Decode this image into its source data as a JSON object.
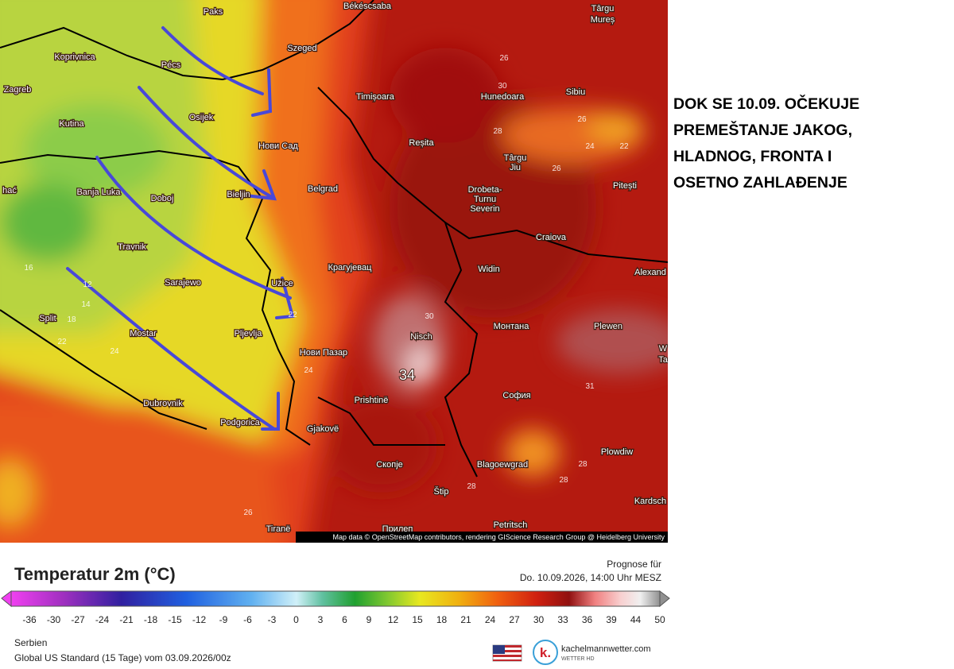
{
  "map": {
    "cities": [
      "Paks",
      "Békéscsaba",
      "Târgu",
      "Mureș",
      "Koprivnica",
      "Pécs",
      "Szeged",
      "Zagreb",
      "Osijek",
      "Timișoara",
      "Hunedoara",
      "Sibiu",
      "Kutina",
      "Нови Сад",
      "Reșita",
      "Târgu",
      "Jiu",
      "Pitești",
      "Banja Luka",
      "Doboj",
      "Bieljin",
      "Belgrad",
      "Drobeta-",
      "Turnu",
      "Severin",
      "Craiova",
      "hać",
      "Travnik",
      "Sarajewo",
      "Užice",
      "Крагујевац",
      "Widin",
      "Alexand",
      "Split",
      "Mostar",
      "Pljevlja",
      "Nisch",
      "Монтана",
      "Plewen",
      "Нови Пазар",
      "Prishtinë",
      "София",
      "Dubrovnik",
      "Podgorica",
      "Gjakovë",
      "Скопје",
      "Blagoewgrad",
      "Plowdiw",
      "Štip",
      "Kardsch",
      "Tiranë",
      "Прилеп",
      "Petritsch",
      "W",
      "Ta"
    ],
    "contour_labels": [
      "26",
      "30",
      "28",
      "26",
      "24",
      "22",
      "26",
      "16",
      "12",
      "14",
      "18",
      "22",
      "24",
      "22",
      "24",
      "30",
      "26",
      "28",
      "28",
      "28",
      "31"
    ],
    "highlight_label": "34",
    "attribution": "Map data © OpenStreetMap contributors, rendering GIScience Research Group @ Heidelberg University"
  },
  "annotation": {
    "lines": [
      "DOK SE 10.09. OČEKUJE",
      "PREMEŠTANJE JAKOG,",
      "HLADNOG, FRONTA I",
      "OSETNO ZAHLAĐENJE"
    ]
  },
  "legend": {
    "title": "Temperatur 2m (°C)",
    "forecast_label": "Prognose für",
    "forecast_time": "Do. 10.09.2026, 14:00 Uhr MESZ",
    "ticks": [
      -36,
      -30,
      -27,
      -24,
      -21,
      -18,
      -15,
      -12,
      -9,
      -6,
      -3,
      0,
      3,
      6,
      9,
      12,
      15,
      18,
      21,
      24,
      27,
      30,
      33,
      36,
      39,
      44,
      50
    ],
    "region": "Serbien",
    "model": "Global US Standard (15 Tage) vom 03.09.2026/00z",
    "logo": "k.",
    "brand": "kachelmannwetter.com",
    "brand_sub": "WETTER HD"
  }
}
